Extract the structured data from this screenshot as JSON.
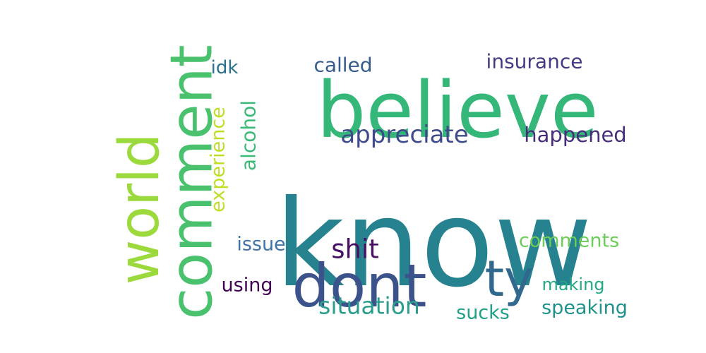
{
  "word_cloud": {
    "words": [
      {
        "text": "know",
        "color": "#26828e",
        "orientation": "horizontal"
      },
      {
        "text": "believe",
        "color": "#35b779",
        "orientation": "horizontal"
      },
      {
        "text": "comment",
        "color": "#4ac16d",
        "orientation": "vertical"
      },
      {
        "text": "world",
        "color": "#9bd93c",
        "orientation": "vertical"
      },
      {
        "text": "dont",
        "color": "#3b528b",
        "orientation": "horizontal"
      },
      {
        "text": "ty",
        "color": "#31688e",
        "orientation": "horizontal"
      },
      {
        "text": "appreciate",
        "color": "#3e4a89",
        "orientation": "horizontal"
      },
      {
        "text": "happened",
        "color": "#472d7b",
        "orientation": "horizontal"
      },
      {
        "text": "insurance",
        "color": "#443983",
        "orientation": "horizontal"
      },
      {
        "text": "called",
        "color": "#365c8d",
        "orientation": "horizontal"
      },
      {
        "text": "idk",
        "color": "#2c728e",
        "orientation": "horizontal"
      },
      {
        "text": "alcohol",
        "color": "#3aba76",
        "orientation": "vertical"
      },
      {
        "text": "experience",
        "color": "#bddf26",
        "orientation": "vertical"
      },
      {
        "text": "shit",
        "color": "#471063",
        "orientation": "horizontal"
      },
      {
        "text": "issue",
        "color": "#3e74a8",
        "orientation": "horizontal"
      },
      {
        "text": "using",
        "color": "#440154",
        "orientation": "horizontal"
      },
      {
        "text": "situation",
        "color": "#2a9d8c",
        "orientation": "horizontal"
      },
      {
        "text": "comments",
        "color": "#6ccd5a",
        "orientation": "horizontal"
      },
      {
        "text": "making",
        "color": "#23a983",
        "orientation": "horizontal"
      },
      {
        "text": "sucks",
        "color": "#1fa187",
        "orientation": "horizontal"
      },
      {
        "text": "speaking",
        "color": "#21918c",
        "orientation": "horizontal"
      }
    ]
  }
}
